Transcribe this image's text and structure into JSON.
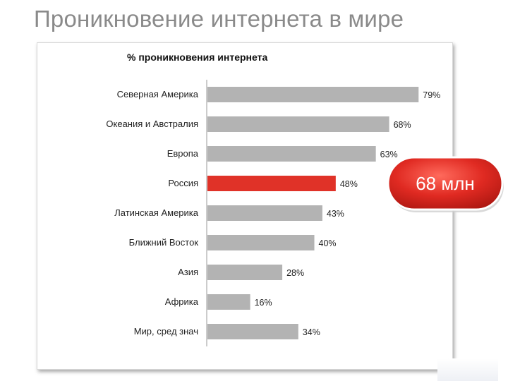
{
  "slide": {
    "title": "Проникновение интернета в мире"
  },
  "callout": {
    "text": "68 млн"
  },
  "colors": {
    "bar_default": "#b3b3b3",
    "bar_highlight": "#e03228",
    "callout_fill": "#e02a22",
    "title_text": "#8a8a8a"
  },
  "chart_data": {
    "type": "bar",
    "orientation": "horizontal",
    "title": "% проникновения интернета",
    "categories": [
      "Северная Америка",
      "Океания и Австралия",
      "Европа",
      "Россия",
      "Латинская Америка",
      "Ближний Восток",
      "Азия",
      "Африка",
      "Мир, сред знач"
    ],
    "values": [
      79,
      68,
      63,
      48,
      43,
      40,
      28,
      16,
      34
    ],
    "value_labels": [
      "79%",
      "68%",
      "63%",
      "48%",
      "43%",
      "40%",
      "28%",
      "16%",
      "34%"
    ],
    "highlight_category": "Россия",
    "xlim": [
      0,
      85
    ],
    "grid": false,
    "legend": "none"
  }
}
